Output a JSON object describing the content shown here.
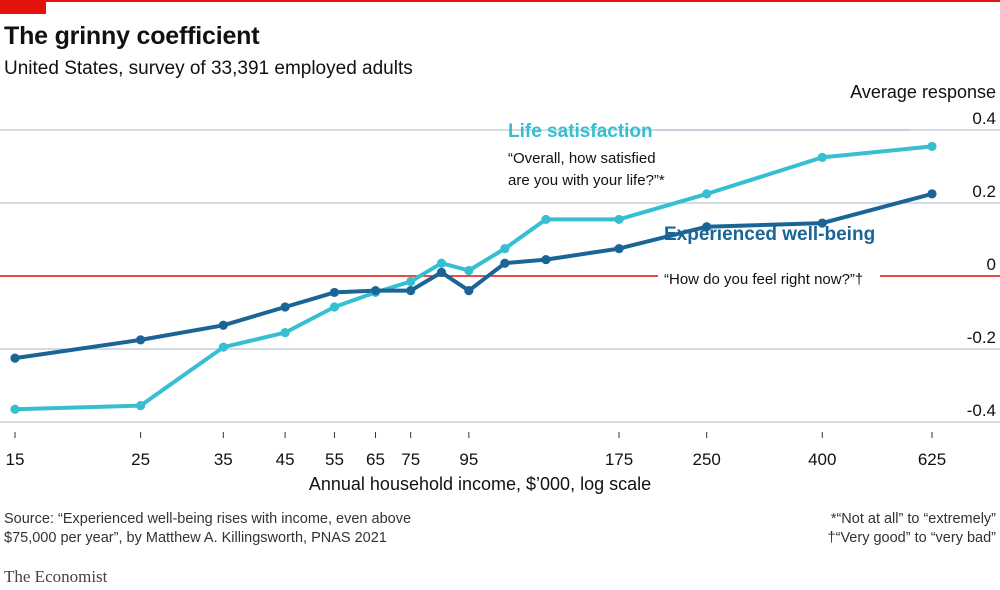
{
  "header": {
    "title": "The grinny coefficient",
    "subtitle": "United States, survey of 33,391 employed adults",
    "y_axis_caption": "Average response"
  },
  "footer": {
    "source_line1": "Source: “Experienced well-being rises with income, even above",
    "source_line2": "$75,000 per year”, by Matthew A. Killingsworth, PNAS 2021",
    "note1": "*“Not at all” to “extremely”",
    "note2": "†“Very good” to “very bad”",
    "brand": "The Economist"
  },
  "colors": {
    "life_satisfaction": "#36bfd1",
    "experienced_wellbeing": "#1a6596",
    "zero_line": "#e3120b",
    "grid": "#b7c6d3",
    "accent": "#e3120b"
  },
  "chart_data": {
    "type": "line",
    "xlabel": "Annual household income, $’000, log scale",
    "ylabel": "Average response",
    "x_scale": "log",
    "x_ticks": [
      15,
      25,
      35,
      45,
      55,
      65,
      75,
      95,
      175,
      250,
      400,
      625
    ],
    "x_tick_labels": [
      "15",
      "25",
      "35",
      "45",
      "55",
      "65",
      "75",
      "95",
      "175",
      "250",
      "400",
      "625"
    ],
    "y_ticks": [
      0.4,
      0.2,
      0,
      -0.2,
      -0.4
    ],
    "y_tick_labels": [
      "0.4",
      "0.2",
      "0",
      "-0.2",
      "-0.4"
    ],
    "ylim": [
      -0.4,
      0.4
    ],
    "grid": true,
    "series": [
      {
        "name": "Life satisfaction",
        "subtitle_line1": "“Overall, how satisfied",
        "subtitle_line2": "are you with your life?”*",
        "x": [
          15,
          25,
          35,
          45,
          55,
          65,
          75,
          85,
          95,
          110,
          130,
          175,
          250,
          400,
          625
        ],
        "y": [
          -0.365,
          -0.355,
          -0.195,
          -0.155,
          -0.085,
          -0.045,
          -0.015,
          0.035,
          0.015,
          0.075,
          0.155,
          0.155,
          0.225,
          0.325,
          0.355
        ]
      },
      {
        "name": "Experienced well-being",
        "subtitle_line1": "“How do you feel right now?”†",
        "x": [
          15,
          25,
          35,
          45,
          55,
          65,
          75,
          85,
          95,
          110,
          130,
          175,
          250,
          400,
          625
        ],
        "y": [
          -0.225,
          -0.175,
          -0.135,
          -0.085,
          -0.045,
          -0.04,
          -0.04,
          0.01,
          -0.04,
          0.035,
          0.045,
          0.075,
          0.135,
          0.145,
          0.225
        ]
      }
    ]
  }
}
